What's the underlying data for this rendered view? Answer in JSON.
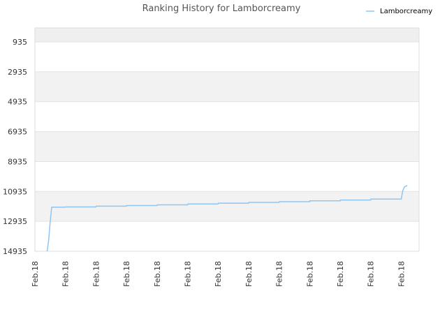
{
  "chart_data": {
    "type": "line",
    "title": "Ranking History for Lamborcreamy",
    "xlabel": "",
    "ylabel": "",
    "y_inverted": true,
    "ylim": [
      14935,
      0
    ],
    "y_ticks": [
      935,
      2935,
      4935,
      6935,
      8935,
      10935,
      12935,
      14935
    ],
    "y_tick_labels": [
      "935",
      "2935",
      "4935",
      "6935",
      "8935",
      "10935",
      "12935",
      "14935"
    ],
    "x_tick_labels": [
      "Feb.18",
      "Feb.18",
      "Feb.18",
      "Feb.18",
      "Feb.18",
      "Feb.18",
      "Feb.18",
      "Feb.18",
      "Feb.18",
      "Feb.18",
      "Feb.18",
      "Feb.18",
      "Feb.18"
    ],
    "grid": true,
    "band_colors": [
      "#efefef",
      "#ffffff",
      "#f2f2f2"
    ],
    "legend_position": "top-right",
    "series": [
      {
        "name": "Lamborcreamy",
        "color": "#8ec5f2",
        "x_index": [
          0.4,
          0.45,
          0.5,
          0.55,
          1.0,
          1.01,
          2.0,
          2.01,
          3.0,
          3.01,
          4.0,
          4.01,
          5.0,
          5.01,
          6.0,
          6.01,
          7.0,
          7.01,
          8.0,
          8.01,
          9.0,
          9.01,
          10.0,
          10.01,
          11.0,
          11.01,
          12.0,
          12.01,
          12.05,
          12.1,
          12.2
        ],
        "values": [
          14935,
          14200,
          13000,
          11990,
          11990,
          11970,
          11970,
          11920,
          11920,
          11880,
          11880,
          11830,
          11830,
          11770,
          11770,
          11720,
          11720,
          11670,
          11670,
          11620,
          11620,
          11560,
          11560,
          11510,
          11510,
          11450,
          11450,
          11400,
          10900,
          10650,
          10530
        ]
      }
    ]
  }
}
